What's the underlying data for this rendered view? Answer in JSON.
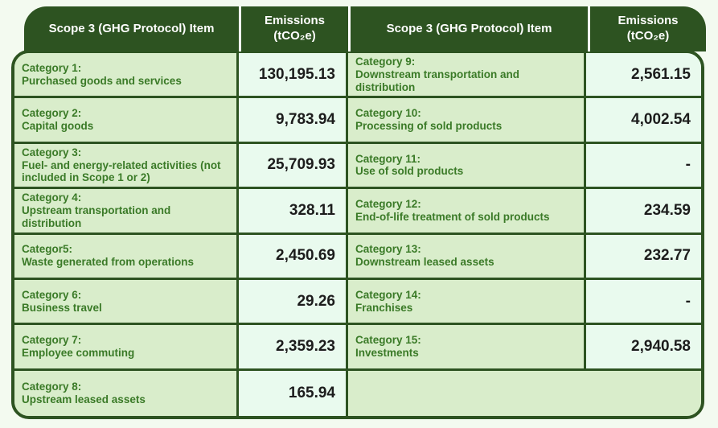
{
  "colors": {
    "header_bg": "#2D5321",
    "border": "#2D5321",
    "item_bg": "#D9EDCB",
    "value_bg": "#E9FAEE",
    "item_text": "#3A7A27",
    "value_text": "#1C1C1C",
    "page_bg": "#F3FAF0",
    "header_text": "#FFFFFF"
  },
  "table": {
    "headers": {
      "item_left": "Scope 3 (GHG Protocol) Item",
      "emissions_left_line1": "Emissions",
      "emissions_left_line2": "(tCO₂e)",
      "item_right": "Scope 3 (GHG Protocol) Item",
      "emissions_right_line1": "Emissions",
      "emissions_right_line2": "(tCO₂e)"
    },
    "left_rows": [
      {
        "category": "Category 1:",
        "description": "Purchased goods and services",
        "value": "130,195.13"
      },
      {
        "category": "Category 2:",
        "description": "Capital goods",
        "value": "9,783.94"
      },
      {
        "category": "Category 3:",
        "description": "Fuel- and energy-related activities (not included in Scope 1 or 2)",
        "value": "25,709.93"
      },
      {
        "category": "Category 4:",
        "description": "Upstream transportation and distribution",
        "value": "328.11"
      },
      {
        "category": "Categor5:",
        "description": "Waste generated from operations",
        "value": "2,450.69"
      },
      {
        "category": "Category 6:",
        "description": "Business travel",
        "value": "29.26"
      },
      {
        "category": "Category 7:",
        "description": "Employee commuting",
        "value": "2,359.23"
      },
      {
        "category": "Category 8:",
        "description": "Upstream leased assets",
        "value": "165.94"
      }
    ],
    "right_rows": [
      {
        "category": "Category 9:",
        "description": "Downstream transportation and distribution",
        "value": "2,561.15"
      },
      {
        "category": "Category 10:",
        "description": "Processing of sold products",
        "value": "4,002.54"
      },
      {
        "category": "Category 11:",
        "description": "Use of sold products",
        "value": "-"
      },
      {
        "category": "Category 12:",
        "description": "End-of-life treatment of sold products",
        "value": "234.59"
      },
      {
        "category": "Category 13:",
        "description": "Downstream leased assets",
        "value": "232.77"
      },
      {
        "category": "Category 14:",
        "description": "Franchises",
        "value": "-"
      },
      {
        "category": "Category 15:",
        "description": "Investments",
        "value": "2,940.58"
      }
    ]
  }
}
